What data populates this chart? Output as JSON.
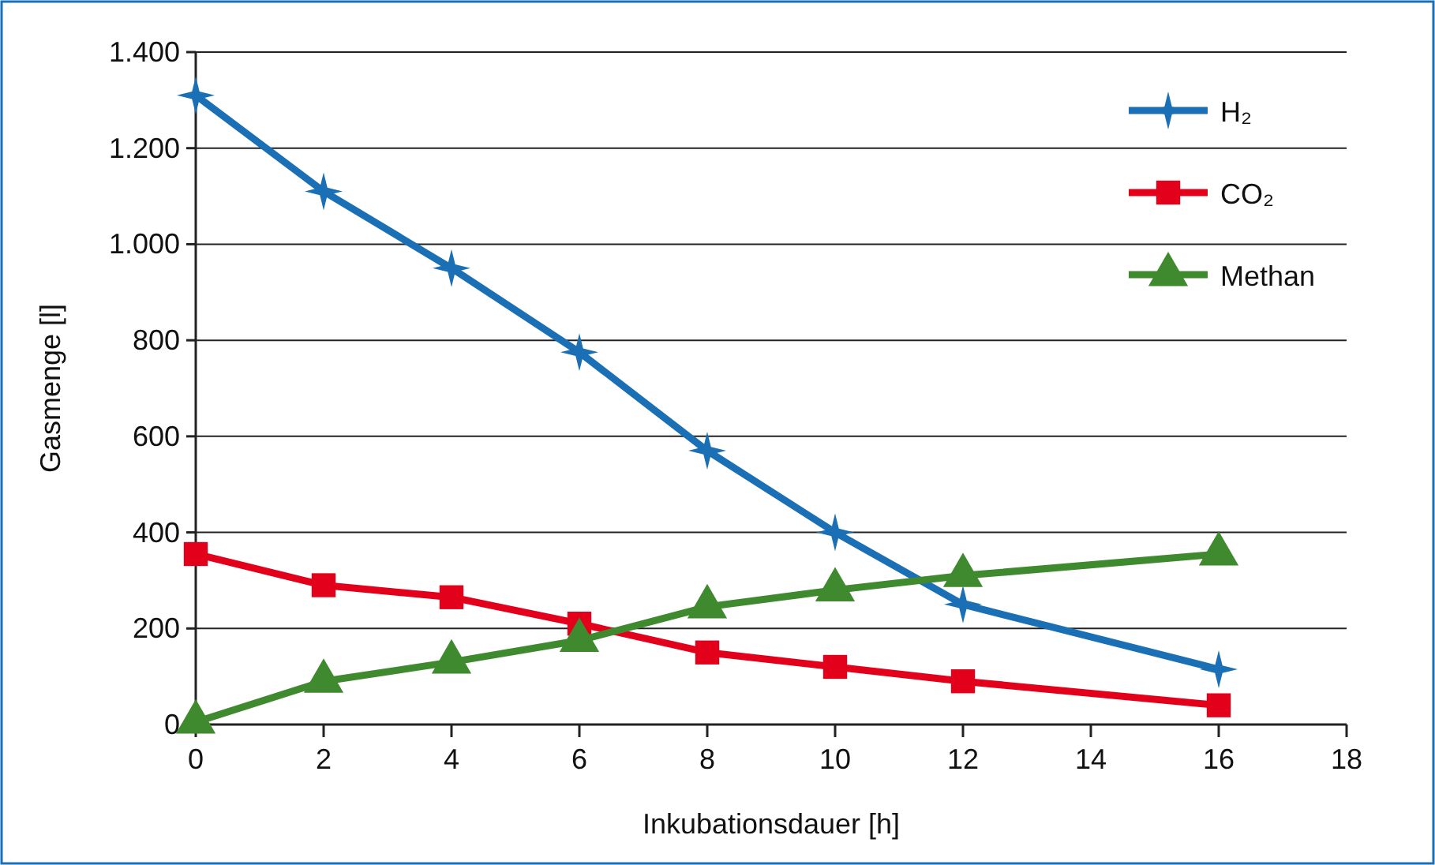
{
  "chart_data": {
    "type": "line",
    "xlabel": "Inkubationsdauer [h]",
    "ylabel": "Gasmenge [l]",
    "x": [
      0,
      2,
      4,
      6,
      8,
      10,
      12,
      16
    ],
    "xlim": [
      0,
      18
    ],
    "xticks": [
      0,
      2,
      4,
      6,
      8,
      10,
      12,
      14,
      16,
      18
    ],
    "ylim": [
      0,
      1400
    ],
    "yticks": [
      0,
      200,
      400,
      600,
      800,
      {
        "value": 1000,
        "label": "1.000"
      },
      {
        "value": 1200,
        "label": "1.200"
      },
      {
        "value": 1400,
        "label": "1.400"
      }
    ],
    "grid": "y",
    "legend": "top right",
    "line_style": "solid",
    "series": [
      {
        "name": "H₂",
        "color": "#1a6fb5",
        "marker": "star",
        "values": [
          1310,
          1110,
          950,
          775,
          570,
          400,
          250,
          115
        ]
      },
      {
        "name": "CO₂",
        "color": "#e3001b",
        "marker": "square",
        "values": [
          355,
          290,
          265,
          210,
          150,
          120,
          90,
          40
        ]
      },
      {
        "name": "Methan",
        "color": "#3f8a2e",
        "marker": "triangle",
        "values": [
          5,
          90,
          130,
          175,
          245,
          280,
          310,
          355
        ]
      }
    ]
  }
}
